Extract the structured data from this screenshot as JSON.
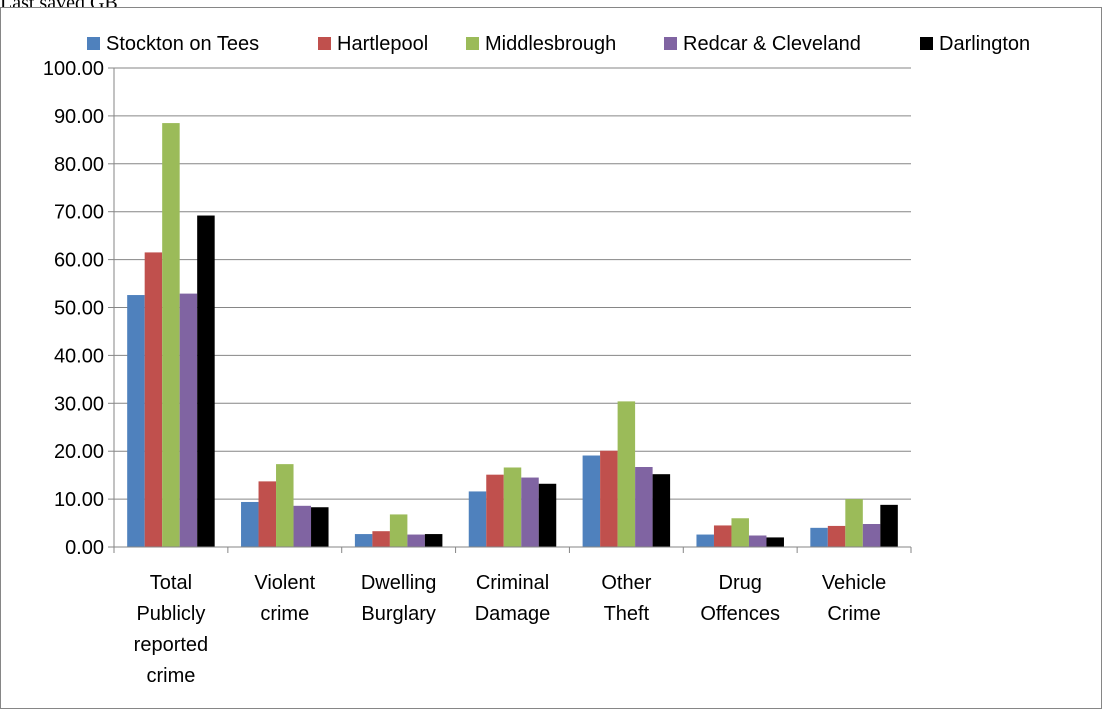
{
  "header": {
    "text": "Last saved GB"
  },
  "chart_data": {
    "type": "bar",
    "title": "",
    "xlabel": "",
    "ylabel": "",
    "ylim": [
      0,
      100
    ],
    "y_ticks": [
      "0.00",
      "10.00",
      "20.00",
      "30.00",
      "40.00",
      "50.00",
      "60.00",
      "70.00",
      "80.00",
      "90.00",
      "100.00"
    ],
    "grid": true,
    "legend_position": "top",
    "categories": [
      [
        "Total",
        "Publicly",
        "reported",
        "crime"
      ],
      [
        "Violent",
        "crime"
      ],
      [
        "Dwelling",
        "Burglary"
      ],
      [
        "Criminal",
        "Damage"
      ],
      [
        "Other",
        "Theft"
      ],
      [
        "Drug",
        "Offences"
      ],
      [
        "Vehicle",
        "Crime"
      ]
    ],
    "series": [
      {
        "name": "Stockton on Tees",
        "color": "#4F81BD",
        "values": [
          52.6,
          9.4,
          2.7,
          11.6,
          19.1,
          2.6,
          4.0
        ]
      },
      {
        "name": "Hartlepool",
        "color": "#C0504D",
        "values": [
          61.5,
          13.7,
          3.3,
          15.1,
          20.1,
          4.5,
          4.4
        ]
      },
      {
        "name": "Middlesbrough",
        "color": "#9BBB59",
        "values": [
          88.5,
          17.3,
          6.8,
          16.6,
          30.4,
          6.0,
          10.0
        ]
      },
      {
        "name": "Redcar & Cleveland",
        "color": "#8064A2",
        "values": [
          52.9,
          8.6,
          2.6,
          14.5,
          16.7,
          2.4,
          4.8
        ]
      },
      {
        "name": "Darlington",
        "color": "#000000",
        "values": [
          69.2,
          8.3,
          2.7,
          13.2,
          15.2,
          2.0,
          8.8
        ]
      }
    ]
  }
}
